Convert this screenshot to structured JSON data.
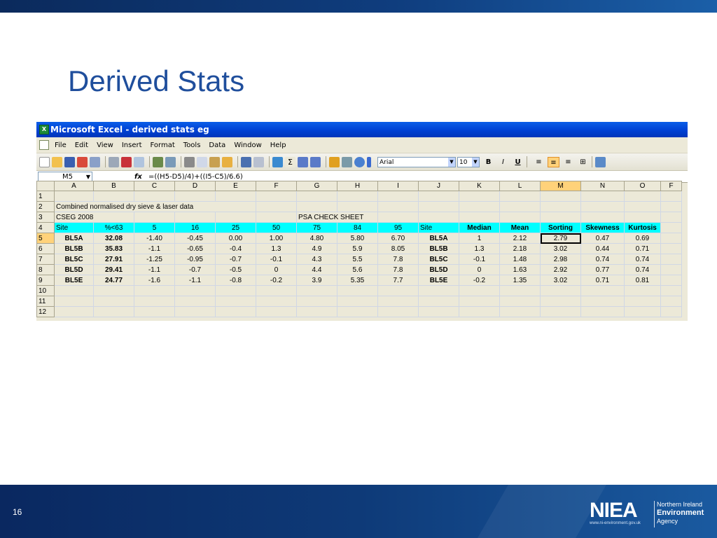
{
  "slide": {
    "title": "Derived Stats",
    "number": "16",
    "logo": {
      "mark": "NIEA",
      "url": "www.ni-environment.gov.uk",
      "line1": "Northern Ireland",
      "line2": "Environment",
      "line3": "Agency"
    }
  },
  "excel": {
    "title": "Microsoft Excel - derived  stats eg",
    "menu": [
      "File",
      "Edit",
      "View",
      "Insert",
      "Format",
      "Tools",
      "Data",
      "Window",
      "Help"
    ],
    "font": "Arial",
    "font_size": "10",
    "name_box": "M5",
    "formula": "=((H5-D5)/4)+((I5-C5)/6.6)",
    "columns": [
      "A",
      "B",
      "C",
      "D",
      "E",
      "F",
      "G",
      "H",
      "I",
      "J",
      "K",
      "L",
      "M",
      "N",
      "O",
      "F"
    ],
    "row_numbers": [
      "1",
      "2",
      "3",
      "4",
      "5",
      "6",
      "7",
      "8",
      "9",
      "10",
      "11",
      "12"
    ],
    "row2_text": "Combined normalised dry sieve & laser data",
    "row3_a": "CSEG 2008",
    "row3_g": "PSA CHECK SHEET",
    "header_row": [
      "Site",
      "%<63",
      "5",
      "16",
      "25",
      "50",
      "75",
      "84",
      "95",
      "Site",
      "Median",
      "Mean",
      "Sorting",
      "Skewness",
      "Kurtosis"
    ],
    "data_rows": [
      [
        "BL5A",
        "32.08",
        "-1.40",
        "-0.45",
        "0.00",
        "1.00",
        "4.80",
        "5.80",
        "6.70",
        "BL5A",
        "1",
        "2.12",
        "2.79",
        "0.47",
        "0.69"
      ],
      [
        "BL5B",
        "35.83",
        "-1.1",
        "-0.65",
        "-0.4",
        "1.3",
        "4.9",
        "5.9",
        "8.05",
        "BL5B",
        "1.3",
        "2.18",
        "3.02",
        "0.44",
        "0.71"
      ],
      [
        "BL5C",
        "27.91",
        "-1.25",
        "-0.95",
        "-0.7",
        "-0.1",
        "4.3",
        "5.5",
        "7.8",
        "BL5C",
        "-0.1",
        "1.48",
        "2.98",
        "0.74",
        "0.74"
      ],
      [
        "BL5D",
        "29.41",
        "-1.1",
        "-0.7",
        "-0.5",
        "0",
        "4.4",
        "5.6",
        "7.8",
        "BL5D",
        "0",
        "1.63",
        "2.92",
        "0.77",
        "0.74"
      ],
      [
        "BL5E",
        "24.77",
        "-1.6",
        "-1.1",
        "-0.8",
        "-0.2",
        "3.9",
        "5.35",
        "7.7",
        "BL5E",
        "-0.2",
        "1.35",
        "3.02",
        "0.71",
        "0.81"
      ]
    ],
    "colors": {
      "header_fill": "#00ffff",
      "title_bar": "#0a5ee8",
      "selected": "#ffd27a"
    }
  }
}
